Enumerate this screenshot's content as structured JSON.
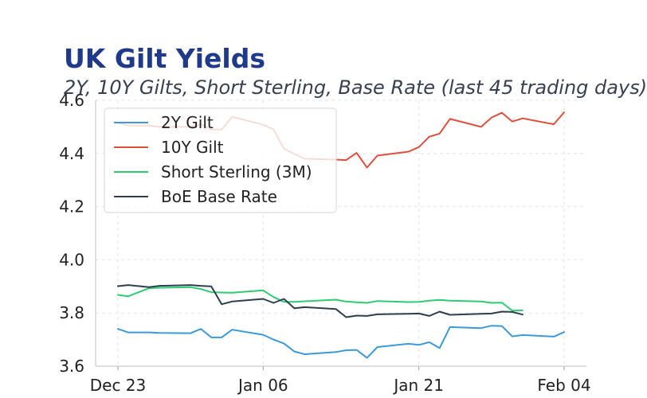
{
  "title": "UK Gilt Yields",
  "subtitle": "2Y, 10Y Gilts, Short Sterling, Base Rate (last 45 trading days)",
  "chart_data": {
    "type": "line",
    "title": "UK Gilt Yields",
    "subtitle": "2Y, 10Y Gilts, Short Sterling, Base Rate (last 45 trading days)",
    "xlabel": "",
    "ylabel": "",
    "ylim": [
      3.6,
      4.6
    ],
    "yticks": [
      "3.6",
      "3.8",
      "4.0",
      "4.2",
      "4.4",
      "4.6"
    ],
    "xlim": [
      "2024-12-23",
      "2025-02-04"
    ],
    "xticks": [
      {
        "date": "2024-12-23",
        "label": "Dec 23"
      },
      {
        "date": "2025-01-06",
        "label": "Jan 06"
      },
      {
        "date": "2025-01-21",
        "label": "Jan 21"
      },
      {
        "date": "2025-02-04",
        "label": "Feb 04"
      }
    ],
    "grid": true,
    "legend_position": "top-left",
    "series": [
      {
        "name": "2Y Gilt",
        "color": "#3b9ad9",
        "points": [
          [
            "2024-12-23",
            3.74
          ],
          [
            "2024-12-24",
            3.727
          ],
          [
            "2024-12-26",
            3.727
          ],
          [
            "2024-12-27",
            3.725
          ],
          [
            "2024-12-30",
            3.724
          ],
          [
            "2024-12-31",
            3.74
          ],
          [
            "2025-01-01",
            3.708
          ],
          [
            "2025-01-02",
            3.708
          ],
          [
            "2025-01-03",
            3.737
          ],
          [
            "2025-01-06",
            3.718
          ],
          [
            "2025-01-07",
            3.7
          ],
          [
            "2025-01-08",
            3.685
          ],
          [
            "2025-01-09",
            3.655
          ],
          [
            "2025-01-10",
            3.645
          ],
          [
            "2025-01-13",
            3.653
          ],
          [
            "2025-01-14",
            3.66
          ],
          [
            "2025-01-15",
            3.661
          ],
          [
            "2025-01-16",
            3.631
          ],
          [
            "2025-01-17",
            3.672
          ],
          [
            "2025-01-20",
            3.684
          ],
          [
            "2025-01-21",
            3.68
          ],
          [
            "2025-01-22",
            3.69
          ],
          [
            "2025-01-23",
            3.668
          ],
          [
            "2025-01-24",
            3.747
          ],
          [
            "2025-01-27",
            3.743
          ],
          [
            "2025-01-28",
            3.752
          ],
          [
            "2025-01-29",
            3.751
          ],
          [
            "2025-01-30",
            3.712
          ],
          [
            "2025-01-31",
            3.717
          ],
          [
            "2025-02-03",
            3.711
          ],
          [
            "2025-02-04",
            3.728
          ]
        ]
      },
      {
        "name": "10Y Gilt",
        "color": "#e04e3c",
        "points": [
          [
            "2024-12-23",
            4.515
          ],
          [
            "2024-12-24",
            4.505
          ],
          [
            "2024-12-26",
            4.505
          ],
          [
            "2024-12-27",
            4.5
          ],
          [
            "2024-12-30",
            4.5
          ],
          [
            "2024-12-31",
            4.51
          ],
          [
            "2025-01-01",
            4.49
          ],
          [
            "2025-01-02",
            4.49
          ],
          [
            "2025-01-03",
            4.538
          ],
          [
            "2025-01-06",
            4.508
          ],
          [
            "2025-01-07",
            4.49
          ],
          [
            "2025-01-08",
            4.418
          ],
          [
            "2025-01-09",
            4.398
          ],
          [
            "2025-01-10",
            4.38
          ],
          [
            "2025-01-13",
            4.377
          ],
          [
            "2025-01-14",
            4.375
          ],
          [
            "2025-01-15",
            4.402
          ],
          [
            "2025-01-16",
            4.347
          ],
          [
            "2025-01-17",
            4.392
          ],
          [
            "2025-01-20",
            4.407
          ],
          [
            "2025-01-21",
            4.424
          ],
          [
            "2025-01-22",
            4.463
          ],
          [
            "2025-01-23",
            4.475
          ],
          [
            "2025-01-24",
            4.53
          ],
          [
            "2025-01-27",
            4.5
          ],
          [
            "2025-01-28",
            4.535
          ],
          [
            "2025-01-29",
            4.553
          ],
          [
            "2025-01-30",
            4.52
          ],
          [
            "2025-01-31",
            4.532
          ],
          [
            "2025-02-03",
            4.51
          ],
          [
            "2025-02-04",
            4.555
          ]
        ]
      },
      {
        "name": "Short Sterling (3M)",
        "color": "#2ecc71",
        "points": [
          [
            "2024-12-23",
            3.868
          ],
          [
            "2024-12-24",
            3.863
          ],
          [
            "2024-12-26",
            3.893
          ],
          [
            "2024-12-27",
            3.895
          ],
          [
            "2024-12-30",
            3.897
          ],
          [
            "2024-12-31",
            3.89
          ],
          [
            "2025-01-01",
            3.878
          ],
          [
            "2025-01-02",
            3.877
          ],
          [
            "2025-01-03",
            3.876
          ],
          [
            "2025-01-06",
            3.885
          ],
          [
            "2025-01-07",
            3.86
          ],
          [
            "2025-01-08",
            3.842
          ],
          [
            "2025-01-09",
            3.842
          ],
          [
            "2025-01-10",
            3.844
          ],
          [
            "2025-01-13",
            3.85
          ],
          [
            "2025-01-14",
            3.843
          ],
          [
            "2025-01-15",
            3.84
          ],
          [
            "2025-01-16",
            3.838
          ],
          [
            "2025-01-17",
            3.845
          ],
          [
            "2025-01-20",
            3.841
          ],
          [
            "2025-01-21",
            3.842
          ],
          [
            "2025-01-22",
            3.846
          ],
          [
            "2025-01-23",
            3.849
          ],
          [
            "2025-01-24",
            3.846
          ],
          [
            "2025-01-27",
            3.843
          ],
          [
            "2025-01-28",
            3.838
          ],
          [
            "2025-01-29",
            3.839
          ],
          [
            "2025-01-30",
            3.809
          ],
          [
            "2025-01-31",
            3.81
          ]
        ]
      },
      {
        "name": "BoE Base Rate",
        "color": "#2d3e50",
        "points": [
          [
            "2024-12-23",
            3.901
          ],
          [
            "2024-12-24",
            3.905
          ],
          [
            "2024-12-26",
            3.897
          ],
          [
            "2024-12-27",
            3.902
          ],
          [
            "2024-12-30",
            3.905
          ],
          [
            "2024-12-31",
            3.902
          ],
          [
            "2025-01-01",
            3.9
          ],
          [
            "2025-01-02",
            3.833
          ],
          [
            "2025-01-03",
            3.843
          ],
          [
            "2025-01-06",
            3.853
          ],
          [
            "2025-01-07",
            3.838
          ],
          [
            "2025-01-08",
            3.853
          ],
          [
            "2025-01-09",
            3.818
          ],
          [
            "2025-01-10",
            3.822
          ],
          [
            "2025-01-13",
            3.815
          ],
          [
            "2025-01-14",
            3.784
          ],
          [
            "2025-01-15",
            3.79
          ],
          [
            "2025-01-16",
            3.789
          ],
          [
            "2025-01-17",
            3.795
          ],
          [
            "2025-01-20",
            3.797
          ],
          [
            "2025-01-21",
            3.798
          ],
          [
            "2025-01-22",
            3.789
          ],
          [
            "2025-01-23",
            3.805
          ],
          [
            "2025-01-24",
            3.793
          ],
          [
            "2025-01-27",
            3.797
          ],
          [
            "2025-01-28",
            3.798
          ],
          [
            "2025-01-29",
            3.805
          ],
          [
            "2025-01-30",
            3.804
          ],
          [
            "2025-01-31",
            3.794
          ]
        ]
      }
    ]
  }
}
